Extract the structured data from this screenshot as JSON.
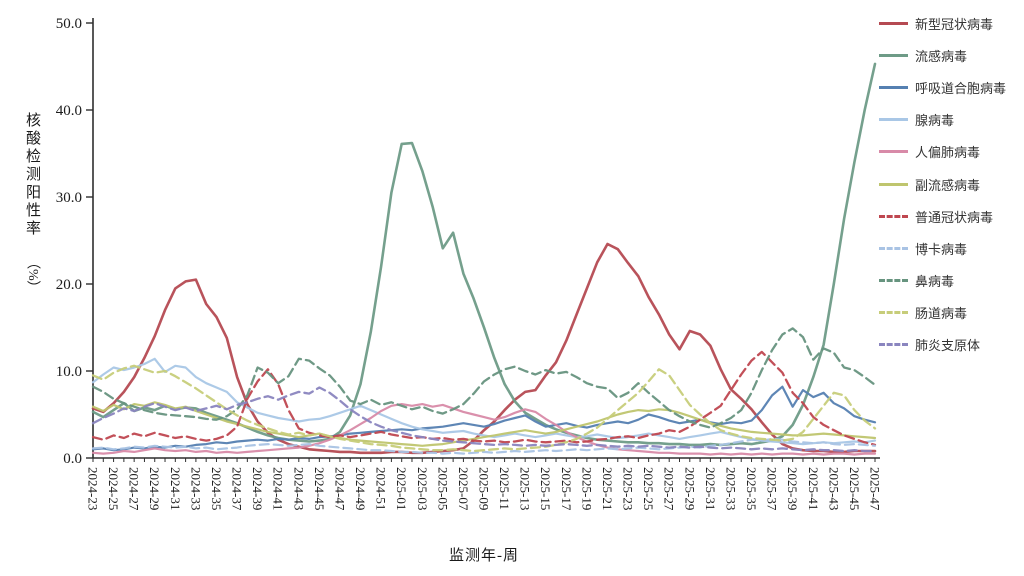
{
  "axes": {
    "y_label_main": "核酸检测阳性率",
    "y_label_unit": "（%）",
    "x_label": "监测年-周"
  },
  "chart_data": {
    "type": "line",
    "title": "",
    "xlabel": "监测年-周",
    "ylabel": "核酸检测阳性率（%）",
    "ylim": [
      0,
      50
    ],
    "y_ticks": [
      "0.0",
      "10.0",
      "20.0",
      "30.0",
      "40.0",
      "50.0"
    ],
    "x_label_step": 2,
    "grid": false,
    "legend_position": "right",
    "x": [
      "2024-23",
      "2024-24",
      "2024-25",
      "2024-26",
      "2024-27",
      "2024-28",
      "2024-29",
      "2024-30",
      "2024-31",
      "2024-32",
      "2024-33",
      "2024-34",
      "2024-35",
      "2024-36",
      "2024-37",
      "2024-38",
      "2024-39",
      "2024-40",
      "2024-41",
      "2024-42",
      "2024-43",
      "2024-44",
      "2024-45",
      "2024-46",
      "2024-47",
      "2024-48",
      "2024-49",
      "2024-50",
      "2024-51",
      "2024-52",
      "2025-01",
      "2025-02",
      "2025-03",
      "2025-04",
      "2025-05",
      "2025-06",
      "2025-07",
      "2025-08",
      "2025-09",
      "2025-10",
      "2025-11",
      "2025-12",
      "2025-13",
      "2025-14",
      "2025-15",
      "2025-16",
      "2025-17",
      "2025-18",
      "2025-19",
      "2025-20",
      "2025-21",
      "2025-22",
      "2025-23",
      "2025-24",
      "2025-25",
      "2025-26",
      "2025-27",
      "2025-28",
      "2025-29",
      "2025-30",
      "2025-31",
      "2025-32",
      "2025-33",
      "2025-34",
      "2025-35",
      "2025-36",
      "2025-37",
      "2025-38",
      "2025-39",
      "2025-40",
      "2025-41",
      "2025-42",
      "2025-43",
      "2025-44",
      "2025-45",
      "2025-46",
      "2025-47"
    ],
    "series": [
      {
        "name": "新型冠状病毒",
        "color": "#b54a52",
        "dash": false,
        "width": 2.6,
        "values": [
          5.7,
          5.3,
          6.3,
          7.6,
          9.3,
          11.5,
          14.0,
          17.0,
          19.5,
          20.3,
          20.5,
          17.7,
          16.2,
          13.8,
          9.3,
          6.2,
          4.2,
          2.9,
          2.1,
          1.6,
          1.3,
          1.0,
          0.9,
          0.8,
          0.7,
          0.7,
          0.6,
          0.6,
          0.6,
          0.7,
          0.7,
          0.6,
          0.6,
          0.7,
          0.8,
          0.9,
          1.1,
          2.0,
          3.2,
          4.2,
          5.5,
          6.7,
          7.6,
          7.8,
          9.5,
          11.0,
          13.5,
          16.5,
          19.5,
          22.5,
          24.6,
          24.0,
          22.4,
          20.9,
          18.5,
          16.5,
          14.2,
          12.5,
          14.6,
          14.2,
          12.9,
          10.2,
          7.9,
          6.8,
          5.6,
          4.1,
          2.7,
          1.6,
          1.1,
          0.9,
          0.8,
          0.8,
          0.7,
          0.7,
          0.8,
          0.8,
          0.8
        ]
      },
      {
        "name": "流感病毒",
        "color": "#6e9b87",
        "dash": false,
        "width": 2.6,
        "values": [
          5.3,
          4.7,
          5.5,
          6.3,
          5.4,
          5.8,
          5.5,
          6.0,
          5.6,
          5.8,
          5.7,
          5.2,
          4.8,
          4.4,
          4.0,
          3.5,
          3.0,
          2.6,
          2.3,
          2.1,
          2.0,
          1.9,
          2.0,
          2.2,
          3.0,
          4.9,
          8.5,
          14.5,
          22.0,
          30.5,
          36.1,
          36.2,
          33.0,
          28.9,
          24.1,
          25.9,
          21.2,
          18.3,
          15.0,
          11.5,
          8.5,
          6.5,
          5.2,
          4.5,
          3.8,
          3.3,
          2.9,
          2.6,
          2.3,
          2.1,
          2.0,
          1.9,
          1.8,
          1.8,
          1.7,
          1.7,
          1.6,
          1.6,
          1.5,
          1.5,
          1.6,
          1.5,
          1.6,
          1.7,
          1.6,
          1.8,
          2.0,
          2.5,
          3.8,
          6.1,
          9.3,
          13.0,
          20.0,
          27.5,
          34.0,
          40.0,
          45.3
        ]
      },
      {
        "name": "呼吸道合胞病毒",
        "color": "#5580b1",
        "dash": false,
        "width": 2.2,
        "values": [
          1.0,
          1.1,
          0.9,
          1.0,
          1.2,
          1.1,
          1.3,
          1.2,
          1.4,
          1.3,
          1.5,
          1.6,
          1.8,
          1.7,
          1.9,
          2.0,
          2.1,
          2.0,
          2.2,
          2.1,
          2.3,
          2.2,
          2.4,
          2.5,
          2.6,
          2.8,
          2.9,
          3.0,
          3.1,
          3.2,
          3.3,
          3.2,
          3.4,
          3.5,
          3.6,
          3.8,
          4.0,
          3.8,
          3.6,
          3.9,
          4.3,
          4.6,
          4.9,
          4.2,
          3.6,
          3.8,
          4.0,
          3.7,
          3.5,
          3.8,
          4.0,
          4.2,
          4.0,
          4.4,
          5.0,
          4.7,
          4.3,
          4.0,
          4.2,
          4.4,
          4.1,
          3.9,
          4.1,
          4.0,
          4.3,
          5.5,
          7.2,
          8.2,
          5.9,
          7.8,
          7.0,
          7.5,
          6.3,
          5.7,
          4.8,
          4.4,
          4.1
        ]
      },
      {
        "name": "腺病毒",
        "color": "#a9c7e6",
        "dash": false,
        "width": 2.2,
        "values": [
          8.7,
          9.6,
          10.4,
          10.1,
          10.4,
          10.8,
          11.4,
          9.9,
          10.6,
          10.4,
          9.3,
          8.6,
          8.1,
          7.6,
          6.4,
          5.8,
          5.2,
          4.9,
          4.6,
          4.4,
          4.2,
          4.4,
          4.5,
          4.8,
          5.2,
          5.6,
          6.0,
          5.5,
          5.0,
          4.5,
          4.0,
          3.6,
          3.3,
          3.1,
          2.9,
          3.0,
          3.1,
          2.8,
          2.6,
          2.4,
          2.6,
          2.8,
          2.6,
          2.4,
          2.6,
          2.8,
          2.6,
          2.4,
          2.5,
          2.7,
          2.5,
          2.3,
          2.4,
          2.6,
          2.8,
          2.6,
          2.4,
          2.2,
          2.4,
          2.6,
          2.8,
          3.0,
          2.7,
          2.4,
          2.2,
          2.0,
          1.9,
          1.8,
          1.7,
          1.6,
          1.7,
          1.8,
          1.7,
          1.8,
          1.9,
          1.8,
          2.0
        ]
      },
      {
        "name": "人偏肺病毒",
        "color": "#d88aa8",
        "dash": false,
        "width": 2.2,
        "values": [
          0.6,
          0.5,
          0.6,
          0.8,
          0.7,
          0.9,
          1.1,
          0.9,
          0.8,
          0.9,
          0.7,
          0.8,
          0.6,
          0.7,
          0.6,
          0.7,
          0.8,
          0.9,
          1.0,
          1.1,
          1.2,
          1.4,
          1.7,
          2.1,
          2.6,
          3.2,
          3.9,
          4.6,
          5.4,
          6.0,
          6.2,
          6.0,
          6.2,
          5.9,
          6.1,
          5.7,
          5.3,
          5.0,
          4.7,
          4.4,
          4.7,
          5.2,
          5.6,
          5.3,
          4.5,
          3.8,
          3.0,
          2.4,
          1.9,
          1.5,
          1.2,
          1.0,
          0.9,
          0.8,
          0.7,
          0.6,
          0.6,
          0.5,
          0.5,
          0.5,
          0.4,
          0.5,
          0.4,
          0.5,
          0.4,
          0.5,
          0.4,
          0.5,
          0.5,
          0.4,
          0.5,
          0.4,
          0.5,
          0.5,
          0.4,
          0.5,
          0.5
        ]
      },
      {
        "name": "副流感病毒",
        "color": "#bfc56e",
        "dash": false,
        "width": 2.2,
        "values": [
          5.9,
          5.4,
          6.1,
          5.6,
          6.2,
          6.0,
          6.4,
          6.1,
          5.7,
          5.9,
          5.4,
          5.0,
          4.6,
          4.2,
          3.9,
          3.6,
          3.3,
          3.0,
          2.8,
          2.6,
          2.4,
          2.6,
          2.8,
          2.5,
          2.3,
          2.1,
          2.0,
          1.9,
          1.8,
          1.7,
          1.6,
          1.5,
          1.4,
          1.5,
          1.6,
          1.8,
          2.0,
          2.2,
          2.4,
          2.6,
          2.8,
          3.0,
          3.2,
          3.0,
          2.8,
          3.0,
          3.3,
          3.6,
          3.9,
          4.2,
          4.6,
          5.0,
          5.3,
          5.5,
          5.4,
          5.6,
          5.5,
          5.2,
          4.8,
          4.4,
          4.0,
          3.7,
          3.4,
          3.2,
          3.0,
          2.9,
          2.8,
          2.7,
          2.6,
          2.6,
          2.7,
          2.8,
          2.7,
          2.6,
          2.5,
          2.4,
          2.3
        ]
      },
      {
        "name": "普通冠状病毒",
        "color": "#bf4750",
        "dash": true,
        "width": 2.3,
        "values": [
          2.4,
          2.1,
          2.6,
          2.3,
          2.8,
          2.5,
          2.9,
          2.6,
          2.3,
          2.5,
          2.2,
          2.0,
          2.2,
          2.6,
          3.6,
          6.8,
          8.8,
          10.2,
          8.5,
          5.5,
          3.4,
          2.9,
          2.6,
          2.4,
          2.6,
          2.4,
          2.6,
          2.8,
          3.0,
          2.7,
          2.5,
          2.3,
          2.4,
          2.2,
          2.3,
          2.1,
          2.2,
          2.0,
          1.9,
          2.0,
          1.8,
          1.9,
          2.1,
          1.9,
          1.8,
          1.9,
          2.0,
          1.8,
          1.9,
          2.1,
          2.2,
          2.4,
          2.5,
          2.3,
          2.6,
          2.8,
          3.2,
          3.0,
          3.6,
          4.4,
          5.2,
          6.0,
          7.8,
          9.6,
          11.2,
          12.2,
          11.0,
          9.8,
          7.5,
          6.3,
          4.7,
          3.8,
          3.2,
          2.6,
          2.2,
          1.8,
          1.5
        ]
      },
      {
        "name": "博卡病毒",
        "color": "#a9c3e4",
        "dash": true,
        "width": 2.2,
        "values": [
          1.1,
          1.2,
          1.0,
          1.1,
          1.3,
          1.2,
          1.4,
          1.3,
          1.2,
          1.3,
          1.1,
          1.2,
          1.0,
          1.1,
          1.2,
          1.4,
          1.5,
          1.6,
          1.5,
          1.4,
          1.5,
          1.6,
          1.4,
          1.3,
          1.2,
          1.1,
          1.0,
          0.9,
          0.9,
          0.8,
          0.7,
          0.7,
          0.6,
          0.6,
          0.5,
          0.6,
          0.5,
          0.6,
          0.7,
          0.6,
          0.7,
          0.8,
          0.7,
          0.8,
          0.9,
          0.8,
          0.9,
          1.0,
          0.9,
          1.0,
          1.1,
          1.0,
          1.1,
          1.2,
          1.1,
          1.0,
          1.1,
          1.2,
          1.3,
          1.2,
          1.4,
          1.5,
          1.7,
          1.9,
          2.1,
          2.0,
          2.2,
          2.1,
          1.9,
          1.8,
          1.7,
          1.8,
          1.6,
          1.5,
          1.6,
          1.5,
          1.4
        ]
      },
      {
        "name": "鼻病毒",
        "color": "#67947f",
        "dash": true,
        "width": 2.3,
        "values": [
          8.2,
          7.6,
          6.8,
          6.3,
          5.9,
          5.5,
          5.2,
          5.0,
          4.9,
          4.8,
          4.7,
          4.5,
          4.4,
          4.8,
          5.6,
          7.2,
          10.4,
          9.8,
          8.6,
          9.4,
          11.4,
          11.2,
          10.3,
          9.5,
          8.2,
          6.6,
          6.2,
          6.7,
          6.1,
          6.4,
          6.0,
          5.6,
          5.9,
          5.4,
          5.1,
          5.6,
          6.2,
          7.4,
          8.8,
          9.6,
          10.2,
          10.5,
          10.0,
          9.6,
          10.1,
          9.7,
          9.9,
          9.3,
          8.6,
          8.2,
          8.0,
          6.9,
          7.5,
          8.6,
          7.5,
          6.5,
          5.5,
          4.8,
          4.2,
          3.8,
          3.5,
          4.0,
          4.6,
          5.5,
          7.5,
          10.1,
          12.4,
          14.2,
          14.9,
          13.9,
          11.3,
          12.6,
          12.1,
          10.4,
          10.1,
          9.3,
          8.4
        ]
      },
      {
        "name": "肠道病毒",
        "color": "#c7cd7a",
        "dash": true,
        "width": 2.3,
        "values": [
          9.5,
          9.0,
          9.8,
          10.3,
          10.6,
          10.2,
          9.8,
          10.0,
          9.4,
          8.7,
          8.0,
          7.2,
          6.4,
          5.6,
          4.9,
          4.3,
          3.8,
          3.4,
          3.0,
          2.7,
          2.9,
          2.6,
          2.8,
          2.5,
          2.2,
          2.0,
          1.8,
          1.6,
          1.5,
          1.4,
          1.2,
          1.1,
          1.0,
          0.9,
          0.9,
          1.0,
          0.9,
          0.8,
          0.9,
          1.0,
          1.1,
          1.0,
          1.1,
          1.2,
          1.3,
          1.5,
          1.8,
          2.2,
          2.8,
          3.5,
          4.5,
          5.5,
          6.5,
          7.5,
          8.8,
          10.2,
          9.5,
          7.8,
          6.1,
          5.0,
          4.0,
          3.2,
          2.8,
          2.5,
          2.3,
          2.2,
          2.1,
          2.0,
          2.2,
          3.0,
          4.5,
          6.0,
          7.5,
          7.2,
          5.5,
          4.3,
          3.4
        ]
      },
      {
        "name": "肺炎支原体",
        "color": "#8a85bf",
        "dash": true,
        "width": 2.3,
        "values": [
          4.0,
          4.6,
          5.1,
          5.7,
          5.4,
          5.9,
          6.3,
          5.9,
          5.5,
          5.8,
          5.4,
          5.7,
          6.0,
          5.6,
          6.1,
          6.4,
          6.8,
          7.1,
          6.7,
          7.2,
          7.6,
          7.4,
          8.1,
          7.5,
          6.6,
          5.6,
          4.8,
          4.1,
          3.6,
          3.2,
          2.9,
          2.6,
          2.4,
          2.2,
          2.0,
          1.9,
          1.8,
          1.7,
          1.6,
          1.5,
          1.6,
          1.5,
          1.4,
          1.5,
          1.4,
          1.5,
          1.6,
          1.5,
          1.4,
          1.5,
          1.4,
          1.3,
          1.4,
          1.3,
          1.4,
          1.3,
          1.2,
          1.3,
          1.2,
          1.3,
          1.2,
          1.1,
          1.2,
          1.1,
          1.0,
          1.1,
          1.0,
          1.1,
          1.0,
          0.9,
          1.0,
          0.9,
          0.9,
          0.8,
          0.9,
          0.8,
          0.8
        ]
      }
    ]
  }
}
